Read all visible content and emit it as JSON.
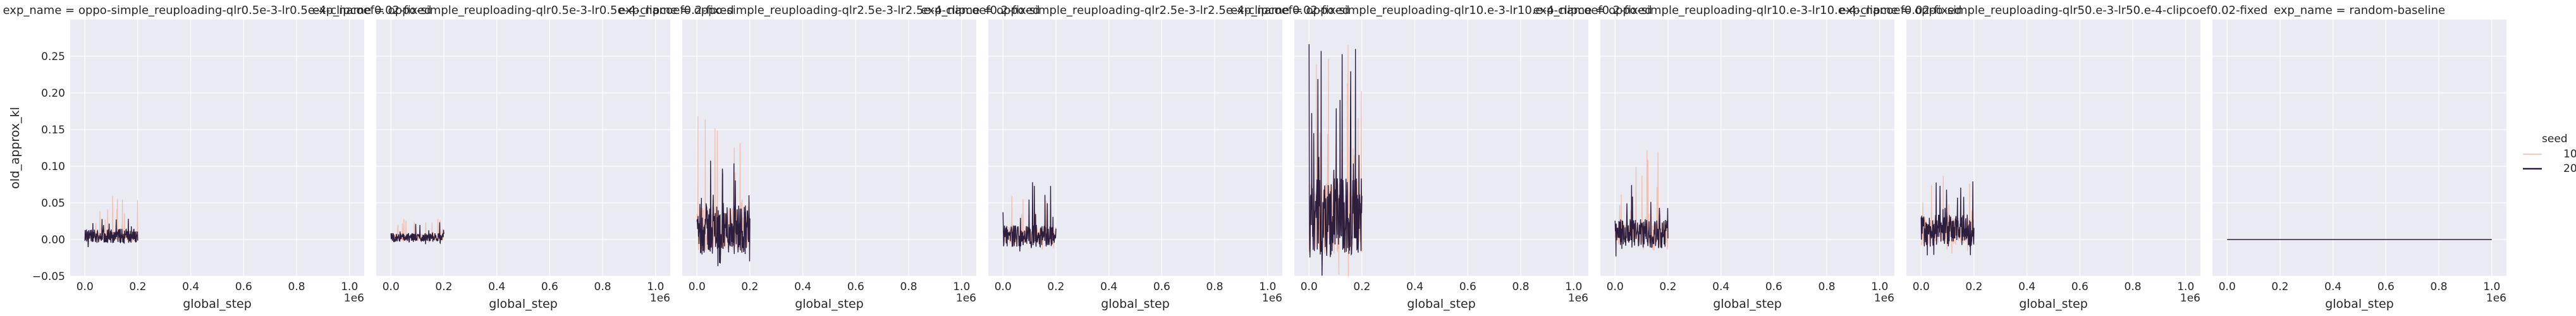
{
  "chart_data": {
    "type": "line",
    "ylabel": "old_approx_kl",
    "xlabel": "global_step",
    "x_offset_label": "1e6",
    "xlim": [
      0,
      1000000
    ],
    "ylim": [
      -0.05,
      0.3
    ],
    "x_ticks": [
      0,
      200000,
      400000,
      600000,
      800000,
      1000000
    ],
    "x_tick_labels": [
      "0.0",
      "0.2",
      "0.4",
      "0.6",
      "0.8",
      "1.0"
    ],
    "y_ticks": [
      -0.05,
      0.0,
      0.05,
      0.1,
      0.15,
      0.2,
      0.25
    ],
    "y_tick_labels": [
      "−0.05",
      "0.00",
      "0.05",
      "0.10",
      "0.15",
      "0.20",
      "0.25"
    ],
    "grid": true,
    "legend": {
      "title": "seed",
      "placement": "right",
      "entries": [
        {
          "label": "10",
          "color": "#f0b8a6"
        },
        {
          "label": "20",
          "color": "#2d1e3e"
        }
      ]
    },
    "panels": [
      {
        "title": "exp_name = oppo-simple_reuploading-qlr0.5e-3-lr0.5e-4-clipcoef0.02-fixed",
        "series": [
          {
            "name": "10",
            "x_end": 200000,
            "mean": 0.005,
            "spread": 0.008,
            "spike_max": 0.06
          },
          {
            "name": "20",
            "x_end": 200000,
            "mean": 0.005,
            "spread": 0.01,
            "spike_max": 0.03
          }
        ]
      },
      {
        "title": "exp_name = oppo-simple_reuploading-qlr0.5e-3-lr0.5e-4-clipcoef0.2-fixed",
        "series": [
          {
            "name": "10",
            "x_end": 200000,
            "mean": 0.003,
            "spread": 0.005,
            "spike_max": 0.03
          },
          {
            "name": "20",
            "x_end": 200000,
            "mean": 0.003,
            "spread": 0.006,
            "spike_max": 0.03
          }
        ]
      },
      {
        "title": "exp_name = oppo-simple_reuploading-qlr2.5e-3-lr2.5e-4-clipcoef0.2-fixed",
        "series": [
          {
            "name": "10",
            "x_end": 200000,
            "mean": 0.015,
            "spread": 0.03,
            "spike_max": 0.17
          },
          {
            "name": "20",
            "x_end": 200000,
            "mean": 0.015,
            "spread": 0.035,
            "spike_max": 0.11
          }
        ]
      },
      {
        "title": "exp_name = oppo-simple_reuploading-qlr2.5e-3-lr2.5e-4-clipcoef0.02-fixed",
        "series": [
          {
            "name": "10",
            "x_end": 200000,
            "mean": 0.005,
            "spread": 0.012,
            "spike_max": 0.06
          },
          {
            "name": "20",
            "x_end": 200000,
            "mean": 0.005,
            "spread": 0.015,
            "spike_max": 0.08
          }
        ]
      },
      {
        "title": "exp_name = oppo-simple_reuploading-qlr10.e-3-lr10.e-4-clipcoef0.2-fixed",
        "series": [
          {
            "name": "10",
            "x_end": 200000,
            "mean": 0.03,
            "spread": 0.05,
            "spike_max": 0.28
          },
          {
            "name": "20",
            "x_end": 200000,
            "mean": 0.03,
            "spread": 0.055,
            "spike_max": 0.27
          }
        ]
      },
      {
        "title": "exp_name = oppo-simple_reuploading-qlr10.e-3-lr10.e-4-clipcoef0.02-fixed",
        "series": [
          {
            "name": "10",
            "x_end": 200000,
            "mean": 0.008,
            "spread": 0.015,
            "spike_max": 0.13
          },
          {
            "name": "20",
            "x_end": 200000,
            "mean": 0.008,
            "spread": 0.02,
            "spike_max": 0.08
          }
        ]
      },
      {
        "title": "exp_name = oppo-simple_reuploading-qlr50.e-3-lr50.e-4-clipcoef0.02-fixed",
        "series": [
          {
            "name": "10",
            "x_end": 200000,
            "mean": 0.012,
            "spread": 0.02,
            "spike_max": 0.09
          },
          {
            "name": "20",
            "x_end": 200000,
            "mean": 0.012,
            "spread": 0.022,
            "spike_max": 0.08
          }
        ]
      },
      {
        "title": "exp_name = random-baseline",
        "series": [
          {
            "name": "10",
            "x_end": 1000000,
            "mean": 0.0,
            "spread": 0.0,
            "spike_max": 0.0
          },
          {
            "name": "20",
            "x_end": 1000000,
            "mean": 0.0,
            "spread": 0.0,
            "spike_max": 0.0
          }
        ]
      }
    ]
  }
}
